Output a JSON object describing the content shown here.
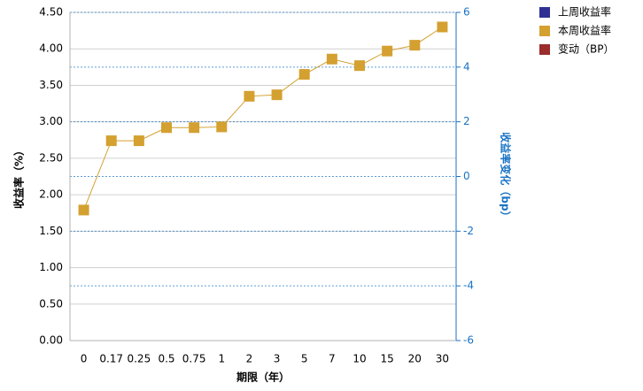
{
  "chart_data": {
    "type": "line",
    "categories": [
      "0",
      "0.17",
      "0.25",
      "0.5",
      "0.75",
      "1",
      "2",
      "3",
      "5",
      "7",
      "10",
      "15",
      "20",
      "30"
    ],
    "series": [
      {
        "name": "上周收益率",
        "color": "#2e3192",
        "values": [
          null,
          null,
          null,
          null,
          null,
          null,
          null,
          null,
          null,
          null,
          null,
          null,
          null,
          null
        ]
      },
      {
        "name": "本周收益率",
        "color": "#d4a030",
        "values": [
          1.79,
          2.74,
          2.74,
          2.92,
          2.92,
          2.93,
          3.35,
          3.37,
          3.65,
          3.86,
          3.77,
          3.97,
          4.05,
          4.3
        ]
      },
      {
        "name": "变动（BP）",
        "color": "#9b2d2d",
        "axis": "y2",
        "values": [
          null,
          null,
          null,
          null,
          null,
          null,
          null,
          null,
          null,
          null,
          null,
          null,
          null,
          null
        ]
      }
    ],
    "ylabel": "收益率（%）",
    "y2label": "收益率变化（bp）",
    "xlabel": "期限（年）",
    "ylim": [
      0,
      4.5
    ],
    "yticks": [
      {
        "value": 0,
        "label": "0.00"
      },
      {
        "value": 0.5,
        "label": "0.50"
      },
      {
        "value": 1,
        "label": "1.00"
      },
      {
        "value": 1.5,
        "label": "1.50"
      },
      {
        "value": 2,
        "label": "2.00"
      },
      {
        "value": 2.5,
        "label": "2.50"
      },
      {
        "value": 3,
        "label": "3.00"
      },
      {
        "value": 3.5,
        "label": "3.50"
      },
      {
        "value": 4,
        "label": "4.00"
      },
      {
        "value": 4.5,
        "label": "4.50"
      }
    ],
    "y2lim": [
      -6,
      6
    ],
    "y2ticks": [
      -6,
      -4,
      -2,
      0,
      2,
      4,
      6
    ],
    "y2color": "#1a73c4",
    "grid": true
  }
}
